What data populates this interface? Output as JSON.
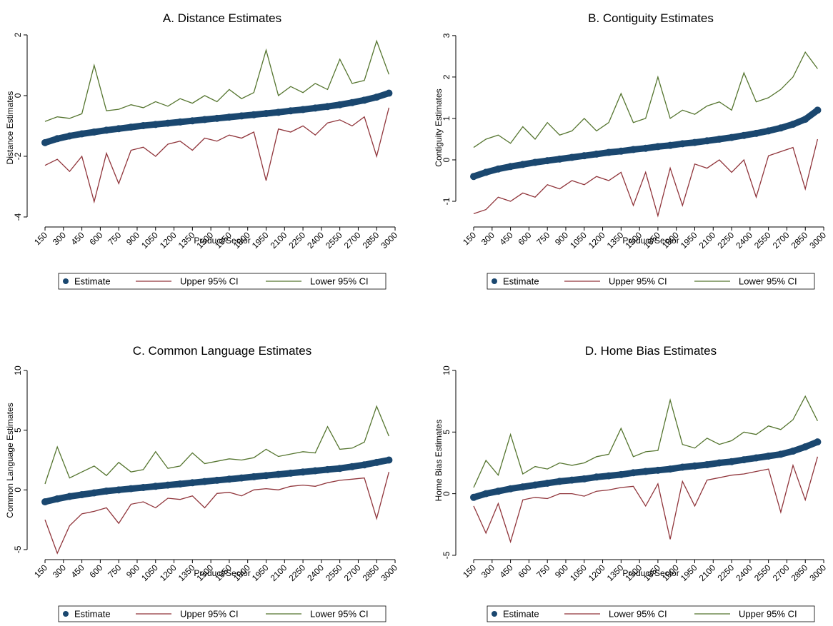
{
  "chart_data": [
    {
      "type": "line",
      "title": "A. Distance Estimates",
      "x_label": "Product/Sector",
      "y_label": "Distance Estimates",
      "x": [
        150,
        250,
        350,
        450,
        550,
        650,
        750,
        850,
        950,
        1050,
        1150,
        1250,
        1350,
        1450,
        1550,
        1650,
        1750,
        1850,
        1950,
        2050,
        2150,
        2250,
        2350,
        2450,
        2550,
        2650,
        2750,
        2850,
        2950
      ],
      "series": [
        {
          "name": "Estimate",
          "color": "#1a476f",
          "marker": "circle",
          "values": [
            -1.55,
            -1.42,
            -1.33,
            -1.26,
            -1.2,
            -1.14,
            -1.09,
            -1.04,
            -0.99,
            -0.95,
            -0.91,
            -0.87,
            -0.83,
            -0.79,
            -0.75,
            -0.71,
            -0.67,
            -0.63,
            -0.59,
            -0.55,
            -0.5,
            -0.46,
            -0.41,
            -0.36,
            -0.3,
            -0.23,
            -0.15,
            -0.05,
            0.08
          ]
        },
        {
          "name": "Upper 95% CI",
          "color": "#90353b",
          "values": [
            -2.3,
            -2.1,
            -2.5,
            -2.0,
            -3.5,
            -1.9,
            -2.9,
            -1.8,
            -1.7,
            -2.0,
            -1.6,
            -1.5,
            -1.8,
            -1.4,
            -1.5,
            -1.3,
            -1.4,
            -1.2,
            -2.8,
            -1.1,
            -1.2,
            -1.0,
            -1.3,
            -0.9,
            -0.8,
            -1.0,
            -0.7,
            -2.0,
            -0.4
          ]
        },
        {
          "name": "Lower 95% CI",
          "color": "#55752f",
          "values": [
            -0.85,
            -0.7,
            -0.75,
            -0.6,
            1.0,
            -0.5,
            -0.45,
            -0.3,
            -0.4,
            -0.2,
            -0.35,
            -0.1,
            -0.25,
            0.0,
            -0.2,
            0.2,
            -0.1,
            0.1,
            1.5,
            0.0,
            0.3,
            0.1,
            0.4,
            0.2,
            1.2,
            0.4,
            0.5,
            1.8,
            0.7
          ]
        }
      ],
      "xlim": [
        51,
        3058
      ],
      "xticks": [
        150,
        300,
        450,
        600,
        750,
        900,
        1050,
        1200,
        1350,
        1500,
        1650,
        1800,
        1950,
        2100,
        2250,
        2400,
        2550,
        2700,
        2850,
        3000
      ],
      "ylim": [
        -4.33,
        2.21
      ],
      "yticks": [
        -4,
        -2,
        0,
        2
      ]
    },
    {
      "type": "line",
      "title": "B. Contiguity Estimates",
      "x_label": "Product/Sector",
      "y_label": "Contiguity Estimates",
      "x": [
        150,
        250,
        350,
        450,
        550,
        650,
        750,
        850,
        950,
        1050,
        1150,
        1250,
        1350,
        1450,
        1550,
        1650,
        1750,
        1850,
        1950,
        2050,
        2150,
        2250,
        2350,
        2450,
        2550,
        2650,
        2750,
        2850,
        2950
      ],
      "series": [
        {
          "name": "Estimate",
          "color": "#1a476f",
          "marker": "circle",
          "values": [
            -0.4,
            -0.3,
            -0.22,
            -0.16,
            -0.11,
            -0.06,
            -0.02,
            0.02,
            0.06,
            0.1,
            0.14,
            0.18,
            0.21,
            0.25,
            0.28,
            0.32,
            0.35,
            0.39,
            0.42,
            0.46,
            0.5,
            0.54,
            0.59,
            0.64,
            0.7,
            0.77,
            0.86,
            0.98,
            1.2
          ]
        },
        {
          "name": "Upper 95% CI",
          "color": "#90353b",
          "values": [
            -1.3,
            -1.2,
            -0.9,
            -1.0,
            -0.8,
            -0.9,
            -0.6,
            -0.7,
            -0.5,
            -0.6,
            -0.4,
            -0.5,
            -0.3,
            -1.1,
            -0.3,
            -1.35,
            -0.2,
            -1.1,
            -0.1,
            -0.2,
            0.0,
            -0.3,
            0.0,
            -0.9,
            0.1,
            0.2,
            0.3,
            -0.7,
            0.5
          ]
        },
        {
          "name": "Lower 95% CI",
          "color": "#55752f",
          "values": [
            0.3,
            0.5,
            0.6,
            0.4,
            0.8,
            0.5,
            0.9,
            0.6,
            0.7,
            1.0,
            0.7,
            0.9,
            1.6,
            0.9,
            1.0,
            2.0,
            1.0,
            1.2,
            1.1,
            1.3,
            1.4,
            1.2,
            2.1,
            1.4,
            1.5,
            1.7,
            2.0,
            2.6,
            2.2
          ]
        }
      ],
      "xlim": [
        51,
        3058
      ],
      "xticks": [
        150,
        300,
        450,
        600,
        750,
        900,
        1050,
        1200,
        1350,
        1500,
        1650,
        1800,
        1950,
        2100,
        2250,
        2400,
        2550,
        2700,
        2850,
        3000
      ],
      "ylim": [
        -1.62,
        3.17
      ],
      "yticks": [
        -1,
        0,
        1,
        2,
        3
      ]
    },
    {
      "type": "line",
      "title": "C. Common Language Estimates",
      "x_label": "Product/Sector",
      "y_label": "Common Language Estimates",
      "x": [
        150,
        250,
        350,
        450,
        550,
        650,
        750,
        850,
        950,
        1050,
        1150,
        1250,
        1350,
        1450,
        1550,
        1650,
        1750,
        1850,
        1950,
        2050,
        2150,
        2250,
        2350,
        2450,
        2550,
        2650,
        2750,
        2850,
        2950
      ],
      "series": [
        {
          "name": "Estimate",
          "color": "#1a476f",
          "marker": "circle",
          "values": [
            -1.0,
            -0.75,
            -0.55,
            -0.4,
            -0.25,
            -0.1,
            0.0,
            0.1,
            0.2,
            0.3,
            0.4,
            0.5,
            0.6,
            0.7,
            0.8,
            0.9,
            1.0,
            1.1,
            1.2,
            1.3,
            1.4,
            1.5,
            1.6,
            1.7,
            1.8,
            1.95,
            2.1,
            2.3,
            2.5
          ]
        },
        {
          "name": "Upper 95% CI",
          "color": "#90353b",
          "values": [
            -2.5,
            -5.3,
            -3.0,
            -2.0,
            -1.8,
            -1.5,
            -2.8,
            -1.2,
            -1.0,
            -1.5,
            -0.7,
            -0.8,
            -0.5,
            -1.5,
            -0.3,
            -0.2,
            -0.5,
            0.0,
            0.1,
            0.0,
            0.3,
            0.4,
            0.3,
            0.6,
            0.8,
            0.9,
            1.0,
            -2.4,
            1.5
          ]
        },
        {
          "name": "Lower 95% CI",
          "color": "#55752f",
          "values": [
            0.5,
            3.6,
            1.0,
            1.5,
            2.0,
            1.2,
            2.3,
            1.5,
            1.7,
            3.2,
            1.8,
            2.0,
            3.1,
            2.2,
            2.4,
            2.6,
            2.5,
            2.7,
            3.4,
            2.8,
            3.0,
            3.2,
            3.1,
            5.3,
            3.4,
            3.5,
            4.0,
            7.0,
            4.5
          ]
        }
      ],
      "xlim": [
        51,
        3058
      ],
      "xticks": [
        150,
        300,
        450,
        600,
        750,
        900,
        1050,
        1200,
        1350,
        1500,
        1650,
        1800,
        1950,
        2100,
        2250,
        2400,
        2550,
        2700,
        2850,
        3000
      ],
      "ylim": [
        -5.84,
        10.78
      ],
      "yticks": [
        -5,
        0,
        5,
        10
      ]
    },
    {
      "type": "line",
      "title": "D. Home Bias Estimates",
      "x_label": "Product/Sector",
      "y_label": "Home Bias Estimates",
      "x": [
        150,
        250,
        350,
        450,
        550,
        650,
        750,
        850,
        950,
        1050,
        1150,
        1250,
        1350,
        1450,
        1550,
        1650,
        1750,
        1850,
        1950,
        2050,
        2150,
        2250,
        2350,
        2450,
        2550,
        2650,
        2750,
        2850,
        2950
      ],
      "series": [
        {
          "name": "Estimate",
          "color": "#1a476f",
          "marker": "circle",
          "values": [
            -0.3,
            0.0,
            0.2,
            0.4,
            0.55,
            0.7,
            0.85,
            1.0,
            1.1,
            1.2,
            1.35,
            1.45,
            1.55,
            1.7,
            1.8,
            1.9,
            2.0,
            2.15,
            2.25,
            2.35,
            2.5,
            2.6,
            2.75,
            2.9,
            3.05,
            3.2,
            3.45,
            3.8,
            4.2
          ]
        },
        {
          "name": "Lower 95% CI",
          "color": "#90353b",
          "values": [
            -1.0,
            -3.2,
            -0.8,
            -3.9,
            -0.5,
            -0.3,
            -0.4,
            0.0,
            0.0,
            -0.2,
            0.2,
            0.3,
            0.5,
            0.6,
            -1.0,
            0.8,
            -3.7,
            1.0,
            -1.0,
            1.1,
            1.3,
            1.5,
            1.6,
            1.8,
            2.0,
            -1.5,
            2.3,
            -0.5,
            3.0
          ]
        },
        {
          "name": "Upper 95% CI",
          "color": "#55752f",
          "values": [
            0.5,
            2.7,
            1.5,
            4.8,
            1.6,
            2.2,
            2.0,
            2.5,
            2.3,
            2.5,
            3.0,
            3.2,
            5.3,
            3.0,
            3.4,
            3.5,
            7.6,
            4.0,
            3.7,
            4.5,
            4.0,
            4.3,
            5.0,
            4.8,
            5.5,
            5.2,
            6.0,
            7.9,
            5.9
          ]
        }
      ],
      "xlim": [
        51,
        3058
      ],
      "xticks": [
        150,
        300,
        450,
        600,
        750,
        900,
        1050,
        1200,
        1350,
        1500,
        1650,
        1800,
        1950,
        2100,
        2250,
        2400,
        2550,
        2700,
        2850,
        3000
      ],
      "ylim": [
        -5.35,
        10.75
      ],
      "yticks": [
        -5,
        0,
        5,
        10
      ]
    }
  ]
}
